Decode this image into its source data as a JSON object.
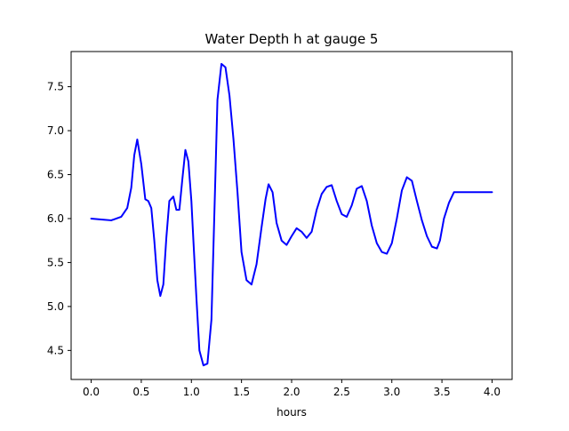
{
  "chart_data": {
    "type": "line",
    "title": "Water Depth h at gauge 5",
    "xlabel": "hours",
    "ylabel": "",
    "xlim": [
      -0.2,
      4.2
    ],
    "ylim": [
      4.17,
      7.9
    ],
    "xticks": [
      0.0,
      0.5,
      1.0,
      1.5,
      2.0,
      2.5,
      3.0,
      3.5,
      4.0
    ],
    "xtick_labels": [
      "0.0",
      "0.5",
      "1.0",
      "1.5",
      "2.0",
      "2.5",
      "3.0",
      "3.5",
      "4.0"
    ],
    "yticks": [
      4.5,
      5.0,
      5.5,
      6.0,
      6.5,
      7.0,
      7.5
    ],
    "ytick_labels": [
      "4.5",
      "5.0",
      "5.5",
      "6.0",
      "6.5",
      "7.0",
      "7.5"
    ],
    "grid": false,
    "series": [
      {
        "color": "#0000ff",
        "x": [
          0.0,
          0.1,
          0.2,
          0.3,
          0.36,
          0.4,
          0.43,
          0.46,
          0.5,
          0.54,
          0.57,
          0.6,
          0.63,
          0.66,
          0.69,
          0.72,
          0.75,
          0.78,
          0.82,
          0.85,
          0.88,
          0.91,
          0.94,
          0.97,
          1.0,
          1.02,
          1.05,
          1.08,
          1.12,
          1.16,
          1.2,
          1.24,
          1.26,
          1.3,
          1.34,
          1.38,
          1.42,
          1.46,
          1.5,
          1.55,
          1.6,
          1.65,
          1.7,
          1.74,
          1.77,
          1.81,
          1.85,
          1.9,
          1.95,
          2.0,
          2.05,
          2.1,
          2.15,
          2.2,
          2.25,
          2.3,
          2.35,
          2.4,
          2.45,
          2.5,
          2.55,
          2.6,
          2.65,
          2.7,
          2.75,
          2.8,
          2.85,
          2.9,
          2.95,
          3.0,
          3.05,
          3.1,
          3.15,
          3.2,
          3.25,
          3.3,
          3.35,
          3.4,
          3.45,
          3.48,
          3.52,
          3.57,
          3.62,
          3.67,
          3.72,
          3.77,
          3.82,
          3.87,
          3.92,
          3.96,
          4.0
        ],
        "y": [
          6.0,
          5.99,
          5.98,
          6.02,
          6.12,
          6.35,
          6.72,
          6.9,
          6.62,
          6.22,
          6.2,
          6.12,
          5.75,
          5.3,
          5.12,
          5.25,
          5.78,
          6.2,
          6.25,
          6.1,
          6.1,
          6.45,
          6.78,
          6.65,
          6.2,
          5.75,
          5.1,
          4.5,
          4.33,
          4.35,
          4.85,
          6.5,
          7.35,
          7.76,
          7.72,
          7.4,
          6.9,
          6.3,
          5.62,
          5.3,
          5.25,
          5.48,
          5.9,
          6.22,
          6.39,
          6.3,
          5.95,
          5.75,
          5.7,
          5.8,
          5.89,
          5.85,
          5.78,
          5.85,
          6.1,
          6.28,
          6.36,
          6.38,
          6.2,
          6.05,
          6.02,
          6.15,
          6.34,
          6.37,
          6.2,
          5.92,
          5.72,
          5.62,
          5.6,
          5.72,
          6.0,
          6.32,
          6.47,
          6.43,
          6.2,
          5.98,
          5.8,
          5.68,
          5.66,
          5.75,
          6.0,
          6.18,
          6.3,
          6.3,
          6.3,
          6.3,
          6.3,
          6.3,
          6.3,
          6.3,
          6.3
        ]
      }
    ]
  }
}
